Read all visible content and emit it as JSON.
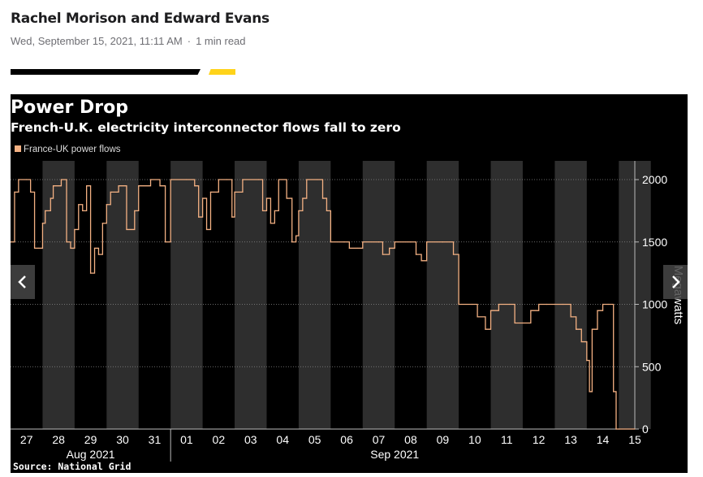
{
  "article": {
    "authors": "Rachel Morison and Edward Evans",
    "date": "Wed, September 15, 2021, 11:11 AM",
    "separator": "·",
    "read_time": "1 min read"
  },
  "colors": {
    "rule_accent": "#ffd31a",
    "series": "#f4b183",
    "background": "#000000"
  },
  "chart_data": {
    "type": "line",
    "title": "Power Drop",
    "subtitle": "French-U.K. electricity interconnector flows fall to zero",
    "legend": [
      "France-UK power flows"
    ],
    "legend_position": "top-left",
    "ylabel": "Megawatts",
    "yaxis_position": "right",
    "ylim": [
      0,
      2150
    ],
    "yticks": [
      0,
      500,
      1000,
      1500,
      2000
    ],
    "grid": true,
    "xlim": [
      "2021-08-27",
      "2021-09-15T12:00"
    ],
    "x_tick_labels": [
      "27",
      "28",
      "29",
      "30",
      "31",
      "01",
      "02",
      "03",
      "04",
      "05",
      "06",
      "07",
      "08",
      "09",
      "10",
      "11",
      "12",
      "13",
      "14",
      "15"
    ],
    "x_month_labels": [
      "Aug 2021",
      "Sep 2021"
    ],
    "night_shading": true,
    "source": "Source: National Grid",
    "series": [
      {
        "name": "France-UK power flows",
        "points": [
          [
            "2021-08-27T00:00",
            1500
          ],
          [
            "2021-08-27T03:00",
            1900
          ],
          [
            "2021-08-27T06:00",
            2000
          ],
          [
            "2021-08-27T12:00",
            2000
          ],
          [
            "2021-08-27T15:00",
            1900
          ],
          [
            "2021-08-27T18:00",
            1450
          ],
          [
            "2021-08-27T21:00",
            1450
          ],
          [
            "2021-08-28T00:00",
            1650
          ],
          [
            "2021-08-28T02:00",
            1750
          ],
          [
            "2021-08-28T06:00",
            1850
          ],
          [
            "2021-08-28T08:00",
            1950
          ],
          [
            "2021-08-28T14:00",
            2000
          ],
          [
            "2021-08-28T18:00",
            1500
          ],
          [
            "2021-08-28T21:00",
            1450
          ],
          [
            "2021-08-29T00:00",
            1600
          ],
          [
            "2021-08-29T03:00",
            1800
          ],
          [
            "2021-08-29T06:00",
            1750
          ],
          [
            "2021-08-29T09:00",
            1950
          ],
          [
            "2021-08-29T12:00",
            1250
          ],
          [
            "2021-08-29T15:00",
            1450
          ],
          [
            "2021-08-29T18:00",
            1400
          ],
          [
            "2021-08-29T21:00",
            1650
          ],
          [
            "2021-08-30T00:00",
            1800
          ],
          [
            "2021-08-30T03:00",
            1900
          ],
          [
            "2021-08-30T09:00",
            1950
          ],
          [
            "2021-08-30T15:00",
            1600
          ],
          [
            "2021-08-30T21:00",
            1750
          ],
          [
            "2021-08-31T00:00",
            1950
          ],
          [
            "2021-08-31T09:00",
            2000
          ],
          [
            "2021-08-31T16:00",
            1950
          ],
          [
            "2021-08-31T20:00",
            1500
          ],
          [
            "2021-09-01T00:00",
            2000
          ],
          [
            "2021-09-01T12:00",
            2000
          ],
          [
            "2021-09-01T18:00",
            1950
          ],
          [
            "2021-09-01T21:00",
            1700
          ],
          [
            "2021-09-02T00:00",
            1850
          ],
          [
            "2021-09-02T03:00",
            1600
          ],
          [
            "2021-09-02T06:00",
            1900
          ],
          [
            "2021-09-02T12:00",
            2000
          ],
          [
            "2021-09-02T18:00",
            2000
          ],
          [
            "2021-09-02T22:00",
            1700
          ],
          [
            "2021-09-03T00:00",
            1900
          ],
          [
            "2021-09-03T06:00",
            2000
          ],
          [
            "2021-09-03T18:00",
            2000
          ],
          [
            "2021-09-03T21:00",
            1750
          ],
          [
            "2021-09-04T00:00",
            1850
          ],
          [
            "2021-09-04T03:00",
            1650
          ],
          [
            "2021-09-04T06:00",
            1750
          ],
          [
            "2021-09-04T09:00",
            2000
          ],
          [
            "2021-09-04T15:00",
            1850
          ],
          [
            "2021-09-04T19:00",
            1500
          ],
          [
            "2021-09-04T22:00",
            1550
          ],
          [
            "2021-09-05T00:00",
            1750
          ],
          [
            "2021-09-05T03:00",
            1850
          ],
          [
            "2021-09-05T06:00",
            2000
          ],
          [
            "2021-09-05T14:00",
            2000
          ],
          [
            "2021-09-05T18:00",
            1850
          ],
          [
            "2021-09-05T21:00",
            1750
          ],
          [
            "2021-09-06T00:00",
            1500
          ],
          [
            "2021-09-06T10:00",
            1500
          ],
          [
            "2021-09-06T14:00",
            1450
          ],
          [
            "2021-09-06T20:00",
            1450
          ],
          [
            "2021-09-07T00:00",
            1500
          ],
          [
            "2021-09-07T12:00",
            1500
          ],
          [
            "2021-09-07T15:00",
            1400
          ],
          [
            "2021-09-07T20:00",
            1450
          ],
          [
            "2021-09-08T00:00",
            1500
          ],
          [
            "2021-09-08T12:00",
            1500
          ],
          [
            "2021-09-08T16:00",
            1400
          ],
          [
            "2021-09-08T20:00",
            1350
          ],
          [
            "2021-09-09T00:00",
            1500
          ],
          [
            "2021-09-09T12:00",
            1500
          ],
          [
            "2021-09-09T20:00",
            1400
          ],
          [
            "2021-09-10T00:00",
            1000
          ],
          [
            "2021-09-10T10:00",
            1000
          ],
          [
            "2021-09-10T14:00",
            900
          ],
          [
            "2021-09-10T20:00",
            800
          ],
          [
            "2021-09-11T00:00",
            950
          ],
          [
            "2021-09-11T06:00",
            1000
          ],
          [
            "2021-09-11T14:00",
            1000
          ],
          [
            "2021-09-11T18:00",
            850
          ],
          [
            "2021-09-12T00:00",
            850
          ],
          [
            "2021-09-12T06:00",
            950
          ],
          [
            "2021-09-12T12:00",
            1000
          ],
          [
            "2021-09-12T18:00",
            1000
          ],
          [
            "2021-09-13T00:00",
            1000
          ],
          [
            "2021-09-13T06:00",
            1000
          ],
          [
            "2021-09-13T12:00",
            900
          ],
          [
            "2021-09-13T16:00",
            800
          ],
          [
            "2021-09-13T20:00",
            700
          ],
          [
            "2021-09-14T00:00",
            550
          ],
          [
            "2021-09-14T02:00",
            300
          ],
          [
            "2021-09-14T04:00",
            800
          ],
          [
            "2021-09-14T08:00",
            950
          ],
          [
            "2021-09-14T12:00",
            1000
          ],
          [
            "2021-09-14T16:00",
            1000
          ],
          [
            "2021-09-14T20:00",
            300
          ],
          [
            "2021-09-14T22:00",
            0
          ],
          [
            "2021-09-15T00:00",
            0
          ],
          [
            "2021-09-15T12:00",
            0
          ]
        ]
      }
    ]
  },
  "nav": {
    "prev_icon": "chevron-left-icon",
    "next_icon": "chevron-right-icon"
  }
}
